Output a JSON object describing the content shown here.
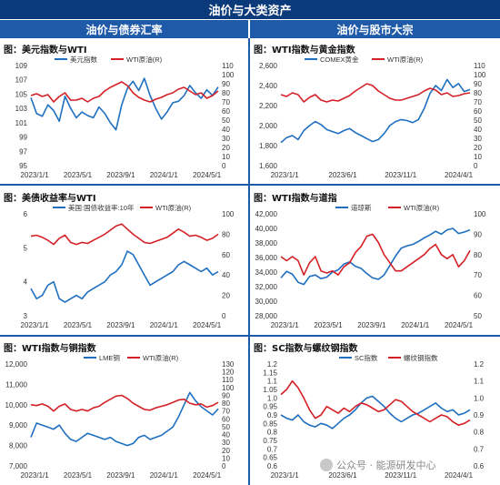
{
  "header": {
    "title": "油价与大类资产",
    "left_section": "油价与债券汇率",
    "right_section": "油价与股市大宗"
  },
  "watermark": "公众号 · 能源研发中心",
  "colors": {
    "blue": "#1f6fc0",
    "red": "#d42026",
    "header": "#0b3a7a",
    "section": "#1f5aa8"
  },
  "panels": [
    {
      "title": "图：美元指数与WTI",
      "chart_data": {
        "type": "line",
        "x_ticks": [
          "2023/1/1",
          "2023/5/1",
          "2023/9/1",
          "2024/1/1",
          "2024/5/1"
        ],
        "ylim": [
          95,
          109
        ],
        "y_ticks": [
          "95",
          "97",
          "99",
          "101",
          "103",
          "105",
          "107",
          "109"
        ],
        "y2lim": [
          0,
          110
        ],
        "y2_ticks": [
          "0",
          "10",
          "20",
          "30",
          "40",
          "50",
          "60",
          "70",
          "80",
          "90",
          "100",
          "110"
        ],
        "legend_position": "top",
        "series": [
          {
            "name": "美元指数",
            "axis": "left",
            "values": [
              104.5,
              102.3,
              101.9,
              103.5,
              102.7,
              101.2,
              104.7,
              103.0,
              101.7,
              102.5,
              102.0,
              101.7,
              103.2,
              102.3,
              101.0,
              100.0,
              103.5,
              105.8,
              106.8,
              105.5,
              107.2,
              104.8,
              103.0,
              101.5,
              102.5,
              103.8,
              104.0,
              104.8,
              106.2,
              105.2,
              104.4,
              105.6,
              104.8,
              106.0
            ]
          },
          {
            "name": "WTI原油(R)",
            "axis": "right",
            "values": [
              77,
              79,
              76,
              78,
              70,
              76,
              80,
              72,
              72,
              74,
              70,
              74,
              76,
              82,
              86,
              89,
              92,
              88,
              80,
              75,
              72,
              70,
              73,
              75,
              78,
              80,
              84,
              86,
              82,
              78,
              80,
              74,
              77,
              82
            ]
          }
        ]
      }
    },
    {
      "title": "图：WTI指数与黄金指数",
      "chart_data": {
        "type": "line",
        "x_ticks": [
          "2023/1/1",
          "2023/6/1",
          "2023/11/1",
          "2024/4/1"
        ],
        "ylim": [
          1600,
          2600
        ],
        "y_ticks": [
          "1,600",
          "1,800",
          "2,000",
          "2,200",
          "2,400",
          "2,600"
        ],
        "y2lim": [
          0,
          110
        ],
        "y2_ticks": [
          "0",
          "10",
          "20",
          "30",
          "40",
          "50",
          "60",
          "70",
          "80",
          "90",
          "100",
          "110"
        ],
        "legend_position": "top",
        "series": [
          {
            "name": "COMEX黄金",
            "axis": "left",
            "values": [
              1830,
              1880,
              1900,
              1860,
              1950,
              2000,
              2040,
              2010,
              1960,
              1940,
              1920,
              1950,
              1970,
              1930,
              1900,
              1870,
              1840,
              1860,
              1920,
              2000,
              2040,
              2060,
              2050,
              2030,
              2060,
              2170,
              2320,
              2400,
              2350,
              2460,
              2380,
              2420,
              2340,
              2360
            ]
          },
          {
            "name": "WTI原油(R)",
            "axis": "right",
            "values": [
              78,
              76,
              80,
              78,
              70,
              75,
              78,
              72,
              70,
              72,
              71,
              74,
              77,
              82,
              86,
              90,
              88,
              82,
              78,
              74,
              72,
              72,
              74,
              76,
              78,
              82,
              85,
              83,
              78,
              80,
              76,
              77,
              79,
              80
            ]
          }
        ]
      }
    },
    {
      "title": "图：美债收益率与WTI",
      "chart_data": {
        "type": "line",
        "x_ticks": [
          "2023/1/1",
          "2023/5/1",
          "2023/9/1",
          "2024/1/1",
          "2024/5/1"
        ],
        "ylim": [
          3,
          6
        ],
        "y_ticks": [
          "3",
          "4",
          "5",
          "6"
        ],
        "y2lim": [
          0,
          100
        ],
        "y2_ticks": [
          "0",
          "20",
          "40",
          "60",
          "80",
          "100"
        ],
        "legend_position": "top",
        "series": [
          {
            "name": "美国:国债收益率:10年",
            "axis": "left",
            "values": [
              3.8,
              3.5,
              3.6,
              3.9,
              4.0,
              3.5,
              3.4,
              3.5,
              3.6,
              3.5,
              3.7,
              3.8,
              3.9,
              4.0,
              4.2,
              4.3,
              4.5,
              4.9,
              4.8,
              4.5,
              4.2,
              3.9,
              4.0,
              4.1,
              4.2,
              4.3,
              4.5,
              4.6,
              4.5,
              4.4,
              4.3,
              4.4,
              4.2,
              4.3
            ]
          },
          {
            "name": "美国:国债收益率:10年 WTI原油(R)",
            "axis": "right",
            "values": [
              78,
              79,
              77,
              74,
              70,
              76,
              79,
              72,
              70,
              72,
              71,
              74,
              77,
              80,
              84,
              88,
              90,
              85,
              80,
              76,
              72,
              71,
              73,
              75,
              77,
              81,
              85,
              82,
              78,
              79,
              77,
              74,
              76,
              80
            ]
          }
        ]
      }
    },
    {
      "title": "图：WTI指数与道指",
      "chart_data": {
        "type": "line",
        "x_ticks": [
          "2023/1/1",
          "2023/5/1",
          "2023/9/1",
          "2024/1/1",
          "2024/5/1"
        ],
        "ylim": [
          28000,
          42000
        ],
        "y_ticks": [
          "28,000",
          "30,000",
          "32,000",
          "34,000",
          "36,000",
          "38,000",
          "40,000",
          "42,000"
        ],
        "y2lim": [
          50,
          100
        ],
        "y2_ticks": [
          "50",
          "60",
          "70",
          "80",
          "90",
          "100"
        ],
        "legend_position": "top",
        "series": [
          {
            "name": "道琼斯",
            "axis": "left",
            "values": [
              33200,
              34100,
              33700,
              32600,
              32300,
              33400,
              33600,
              33100,
              33300,
              34000,
              34300,
              35100,
              35400,
              34800,
              34500,
              33800,
              33200,
              33000,
              33600,
              34900,
              36200,
              37300,
              37600,
              37800,
              38200,
              38700,
              39100,
              39600,
              39200,
              39800,
              40000,
              39300,
              39500,
              39800
            ]
          },
          {
            "name": "WTI原油(R)",
            "axis": "right",
            "values": [
              79,
              77,
              79,
              77,
              70,
              76,
              79,
              72,
              71,
              72,
              70,
              74,
              76,
              81,
              84,
              89,
              90,
              86,
              80,
              76,
              72,
              72,
              74,
              76,
              78,
              80,
              83,
              85,
              80,
              78,
              80,
              74,
              77,
              82
            ]
          }
        ]
      }
    },
    {
      "title": "图：WTI指数与铜指数",
      "chart_data": {
        "type": "line",
        "x_ticks": [
          "2023/1/1",
          "2023/5/1",
          "2023/9/1",
          "2024/1/1",
          "2024/5/1"
        ],
        "ylim": [
          7000,
          12000
        ],
        "y_ticks": [
          "7,000",
          "8,000",
          "9,000",
          "10,000",
          "11,000",
          "12,000"
        ],
        "y2lim": [
          0,
          130
        ],
        "y2_ticks": [
          "0",
          "10",
          "20",
          "30",
          "40",
          "50",
          "60",
          "70",
          "80",
          "90",
          "100",
          "110",
          "120",
          "130"
        ],
        "legend_position": "top",
        "series": [
          {
            "name": "LME铜",
            "axis": "left",
            "values": [
              8400,
              9100,
              9000,
              8900,
              8800,
              9000,
              8600,
              8300,
              8200,
              8400,
              8600,
              8500,
              8400,
              8300,
              8400,
              8200,
              8100,
              8000,
              8100,
              8400,
              8500,
              8300,
              8400,
              8500,
              8700,
              8900,
              9400,
              10000,
              10600,
              10200,
              9900,
              9700,
              9500,
              9800
            ]
          },
          {
            "name": "WTI原油(R)",
            "axis": "right",
            "values": [
              78,
              77,
              79,
              76,
              70,
              76,
              79,
              72,
              70,
              72,
              70,
              74,
              76,
              81,
              85,
              89,
              90,
              86,
              80,
              76,
              72,
              71,
              74,
              76,
              78,
              81,
              84,
              85,
              80,
              78,
              79,
              75,
              77,
              81
            ]
          }
        ]
      }
    },
    {
      "title": "图：SC指数与螺纹钢指数",
      "chart_data": {
        "type": "line",
        "x_ticks": [
          "2023/1/1",
          "2023/6/1",
          "2023/11/1",
          "2024/4/1"
        ],
        "ylim": [
          0.6,
          1.2
        ],
        "y_ticks": [
          "0.6",
          "0.65",
          "0.7",
          "0.75",
          "0.8",
          "0.85",
          "0.9",
          "0.95",
          "1.0",
          "1.05",
          "1.1",
          "1.15",
          "1.2"
        ],
        "y2lim": [
          0.6,
          1.2
        ],
        "y2_ticks": [
          "0.6",
          "0.7",
          "0.8",
          "0.9",
          "1.0",
          "1.1",
          "1.2"
        ],
        "legend_position": "top",
        "series": [
          {
            "name": "SC指数",
            "axis": "left",
            "values": [
              0.9,
              0.88,
              0.87,
              0.9,
              0.86,
              0.84,
              0.83,
              0.85,
              0.84,
              0.82,
              0.85,
              0.88,
              0.9,
              0.93,
              0.97,
              1.0,
              1.01,
              0.98,
              0.95,
              0.91,
              0.88,
              0.86,
              0.88,
              0.9,
              0.91,
              0.93,
              0.95,
              0.97,
              0.94,
              0.92,
              0.93,
              0.9,
              0.91,
              0.93
            ]
          },
          {
            "name": "螺纹钢指数",
            "axis": "right",
            "values": [
              1.02,
              1.05,
              1.1,
              1.06,
              1.0,
              0.93,
              0.88,
              0.9,
              0.95,
              0.93,
              0.91,
              0.94,
              0.92,
              0.95,
              0.97,
              0.96,
              0.94,
              0.92,
              0.93,
              0.96,
              0.99,
              0.98,
              0.95,
              0.92,
              0.9,
              0.88,
              0.86,
              0.88,
              0.9,
              0.89,
              0.86,
              0.84,
              0.85,
              0.87
            ]
          }
        ]
      }
    }
  ]
}
